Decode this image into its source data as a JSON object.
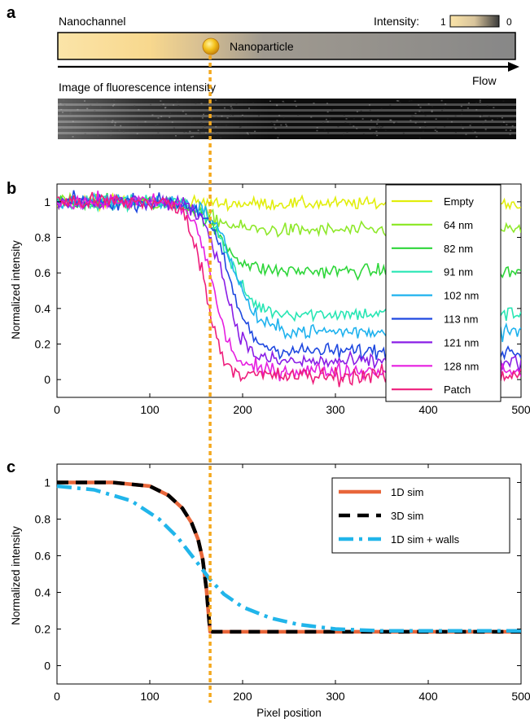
{
  "colors": {
    "marker": "#f4a81d",
    "gradient_bright": "#fbe4a8",
    "gradient_dark": "#878787",
    "sim_1d": "#e8663a",
    "sim_3d": "#000000",
    "sim_walls": "#21b5ea"
  },
  "panel_a": {
    "letter": "a",
    "nanochannel_label": "Nanochannel",
    "intensity_label": "Intensity:",
    "scale_max": "1",
    "scale_min": "0",
    "particle_label": "Nanoparticle",
    "flow_label": "Flow",
    "image_label": "Image of fluorescence intensity"
  },
  "panel_b": {
    "letter": "b"
  },
  "panel_c": {
    "letter": "c"
  },
  "chart_data": [
    {
      "panel": "b",
      "type": "line",
      "ylabel": "Normalized intensity",
      "xlabel": "",
      "xlim": [
        0,
        500
      ],
      "ylim": [
        -0.1,
        1.1
      ],
      "x_ticks": [
        0,
        100,
        200,
        300,
        400,
        500
      ],
      "y_ticks": [
        0,
        0.2,
        0.4,
        0.6,
        0.8,
        1
      ],
      "x_tick_labels": [
        "0",
        "100",
        "200",
        "300",
        "400",
        "500"
      ],
      "y_tick_labels": [
        "0",
        "0.2",
        "0.4",
        "0.6",
        "0.8",
        "1"
      ],
      "legend_position": "right",
      "note": "noisy measured profiles; each series approximated by its plateau value, transition centre and transition width (pixels)",
      "series": [
        {
          "name": "Empty",
          "color": "#e1ee0c",
          "plateau": 0.99,
          "center": 150,
          "width": 60,
          "noise": 0.035
        },
        {
          "name": "64 nm",
          "color": "#8ee82a",
          "plateau": 0.84,
          "center": 165,
          "width": 60,
          "noise": 0.04
        },
        {
          "name": "82 nm",
          "color": "#2ed63a",
          "plateau": 0.61,
          "center": 175,
          "width": 55,
          "noise": 0.04
        },
        {
          "name": "91 nm",
          "color": "#28e6b4",
          "plateau": 0.37,
          "center": 185,
          "width": 50,
          "noise": 0.04
        },
        {
          "name": "102 nm",
          "color": "#1eb2ee",
          "plateau": 0.27,
          "center": 190,
          "width": 50,
          "noise": 0.045
        },
        {
          "name": "113 nm",
          "color": "#1e48e0",
          "plateau": 0.16,
          "center": 185,
          "width": 48,
          "noise": 0.045
        },
        {
          "name": "121 nm",
          "color": "#8a1ee6",
          "plateau": 0.1,
          "center": 180,
          "width": 45,
          "noise": 0.045
        },
        {
          "name": "128 nm",
          "color": "#e61ee0",
          "plateau": 0.05,
          "center": 168,
          "width": 42,
          "noise": 0.045
        },
        {
          "name": "Patch",
          "color": "#ee1e7c",
          "plateau": 0.02,
          "center": 160,
          "width": 38,
          "noise": 0.05
        }
      ]
    },
    {
      "panel": "c",
      "type": "line",
      "xlabel": "Pixel position",
      "ylabel": "Normalized intensity",
      "xlim": [
        0,
        500
      ],
      "ylim": [
        -0.1,
        1.1
      ],
      "x_ticks": [
        0,
        100,
        200,
        300,
        400,
        500
      ],
      "y_ticks": [
        0,
        0.2,
        0.4,
        0.6,
        0.8,
        1
      ],
      "x_tick_labels": [
        "0",
        "100",
        "200",
        "300",
        "400",
        "500"
      ],
      "y_tick_labels": [
        "0",
        "0.2",
        "0.4",
        "0.6",
        "0.8",
        "1"
      ],
      "legend_position": "top-right",
      "particle_position": 165,
      "series": [
        {
          "name": "1D sim",
          "color": "#e8663a",
          "style": "solid",
          "x": [
            0,
            60,
            100,
            120,
            135,
            145,
            152,
            157,
            161,
            163,
            165,
            500
          ],
          "y": [
            1.0,
            1.0,
            0.98,
            0.93,
            0.86,
            0.78,
            0.69,
            0.58,
            0.42,
            0.3,
            0.185,
            0.185
          ]
        },
        {
          "name": "3D sim",
          "color": "#000000",
          "style": "dashed",
          "x": [
            0,
            60,
            100,
            120,
            135,
            145,
            152,
            157,
            161,
            163,
            165,
            500
          ],
          "y": [
            1.0,
            1.0,
            0.98,
            0.93,
            0.86,
            0.78,
            0.69,
            0.58,
            0.42,
            0.3,
            0.185,
            0.185
          ]
        },
        {
          "name": "1D sim + walls",
          "color": "#21b5ea",
          "style": "dashdot",
          "x": [
            0,
            40,
            80,
            110,
            130,
            150,
            165,
            180,
            200,
            230,
            260,
            300,
            350,
            500
          ],
          "y": [
            0.98,
            0.96,
            0.9,
            0.8,
            0.7,
            0.57,
            0.47,
            0.39,
            0.32,
            0.26,
            0.225,
            0.2,
            0.19,
            0.19
          ]
        }
      ]
    }
  ]
}
